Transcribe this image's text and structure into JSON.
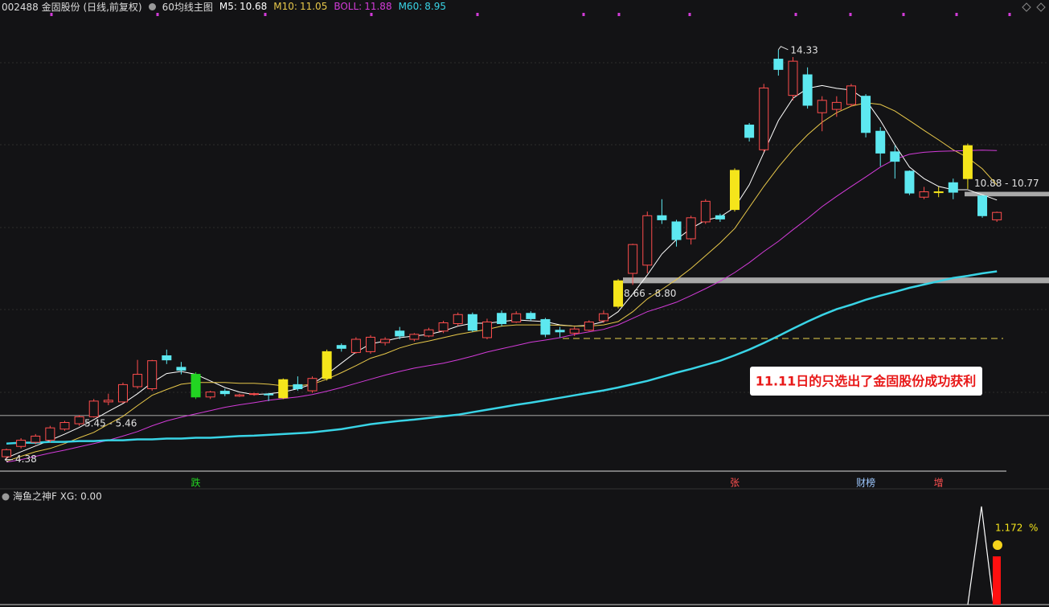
{
  "header": {
    "title": "002488 金固股份 (日线,前复权)",
    "template": "60均线主图",
    "indicators": [
      {
        "label": "M5:",
        "value": 10.68,
        "color": "#ffffff"
      },
      {
        "label": "M10:",
        "value": 11.05,
        "color": "#e8c84a"
      },
      {
        "label": "BOLL:",
        "value": 11.88,
        "color": "#d23bd8"
      },
      {
        "label": "M60:",
        "value": 8.95,
        "color": "#39d4e6"
      }
    ]
  },
  "chart_data": {
    "type": "candlestick",
    "ylim": [
      4.1,
      14.95
    ],
    "open": [
      4.45,
      4.7,
      4.8,
      4.85,
      5.12,
      5.25,
      5.42,
      5.78,
      5.78,
      6.15,
      6.1,
      6.9,
      6.62,
      6.45,
      5.9,
      6.04,
      5.92,
      5.96,
      5.97,
      5.88,
      6.2,
      6.05,
      6.35,
      7.15,
      6.98,
      7.0,
      7.22,
      7.5,
      7.3,
      7.38,
      7.5,
      7.68,
      7.9,
      7.34,
      7.93,
      7.72,
      7.93,
      7.78,
      7.52,
      7.45,
      7.52,
      7.75,
      8.1,
      8.9,
      9.1,
      10.3,
      10.15,
      9.74,
      10.15,
      10.3,
      10.45,
      12.5,
      11.9,
      14.1,
      13.22,
      13.72,
      12.8,
      12.88,
      13.0,
      13.2,
      12.35,
      11.85,
      11.38,
      10.75,
      10.86,
      11.1,
      12.0,
      10.78,
      10.2
    ],
    "close": [
      4.62,
      4.85,
      4.95,
      5.15,
      5.28,
      5.42,
      5.8,
      5.82,
      6.2,
      6.45,
      6.78,
      6.8,
      6.55,
      5.9,
      6.02,
      5.98,
      5.95,
      5.98,
      5.95,
      6.32,
      6.1,
      6.35,
      7.0,
      7.08,
      7.3,
      7.35,
      7.3,
      7.38,
      7.42,
      7.53,
      7.7,
      7.9,
      7.52,
      7.72,
      7.68,
      7.92,
      7.8,
      7.42,
      7.48,
      7.55,
      7.72,
      7.92,
      8.72,
      9.6,
      10.3,
      10.2,
      9.72,
      10.25,
      10.65,
      10.22,
      11.4,
      12.2,
      13.4,
      13.85,
      14.05,
      12.98,
      13.1,
      13.05,
      13.45,
      12.32,
      11.82,
      11.62,
      10.85,
      10.88,
      10.88,
      10.87,
      11.2,
      10.3,
      10.38
    ],
    "high": [
      4.65,
      4.9,
      5.0,
      5.2,
      5.32,
      5.46,
      5.85,
      5.98,
      6.25,
      6.8,
      6.8,
      7.05,
      6.75,
      6.5,
      6.05,
      6.1,
      5.98,
      6.0,
      6.0,
      6.35,
      6.4,
      6.4,
      7.05,
      7.2,
      7.35,
      7.4,
      7.35,
      7.6,
      7.45,
      7.58,
      7.75,
      7.95,
      7.95,
      7.8,
      8.0,
      7.98,
      7.98,
      7.82,
      7.6,
      7.6,
      7.76,
      8.0,
      8.76,
      9.62,
      10.4,
      10.7,
      10.2,
      10.3,
      10.7,
      10.35,
      11.45,
      12.55,
      13.5,
      14.33,
      14.15,
      13.9,
      13.2,
      13.2,
      13.5,
      13.25,
      12.45,
      12.0,
      11.4,
      11.0,
      11.0,
      11.2,
      12.05,
      10.8,
      10.4
    ],
    "low": [
      4.38,
      4.65,
      4.75,
      4.8,
      5.08,
      5.2,
      5.4,
      5.7,
      5.75,
      6.1,
      6.05,
      6.7,
      6.45,
      5.85,
      5.85,
      5.92,
      5.9,
      5.93,
      5.8,
      5.85,
      6.05,
      6.0,
      6.3,
      7.0,
      6.95,
      6.95,
      7.15,
      7.3,
      7.25,
      7.35,
      7.45,
      7.62,
      7.48,
      7.3,
      7.62,
      7.7,
      7.75,
      7.35,
      7.35,
      7.38,
      7.5,
      7.7,
      8.05,
      8.62,
      8.9,
      10.1,
      9.55,
      9.6,
      10.1,
      10.15,
      10.4,
      12.1,
      11.85,
      13.7,
      13.1,
      12.9,
      12.35,
      12.7,
      12.95,
      12.2,
      11.5,
      11.2,
      10.8,
      10.7,
      10.75,
      10.7,
      10.95,
      10.25,
      10.15
    ],
    "colors": [
      "#ff4d4d",
      "#ff4d4d",
      "#ff4d4d",
      "#ff4d4d",
      "#ff4d4d",
      "#ff4d4d",
      "#ff4d4d",
      "#ff4d4d",
      "#ff4d4d",
      "#ff4d4d",
      "#ff4d4d",
      "#5de8f0",
      "#5de8f0",
      "#22d422",
      "#ff4d4d",
      "#5de8f0",
      "#ff4d4d",
      "#ff4d4d",
      "#5de8f0",
      "#f5e51b",
      "#5de8f0",
      "#ff4d4d",
      "#f5e51b",
      "#5de8f0",
      "#ff4d4d",
      "#ff4d4d",
      "#ff4d4d",
      "#5de8f0",
      "#ff4d4d",
      "#ff4d4d",
      "#ff4d4d",
      "#ff4d4d",
      "#5de8f0",
      "#ff4d4d",
      "#5de8f0",
      "#ff4d4d",
      "#5de8f0",
      "#5de8f0",
      "#5de8f0",
      "#ff4d4d",
      "#ff4d4d",
      "#ff4d4d",
      "#f5e51b",
      "#ff4d4d",
      "#ff4d4d",
      "#5de8f0",
      "#5de8f0",
      "#ff4d4d",
      "#ff4d4d",
      "#5de8f0",
      "#f5e51b",
      "#5de8f0",
      "#ff4d4d",
      "#5de8f0",
      "#ff4d4d",
      "#5de8f0",
      "#ff4d4d",
      "#ff4d4d",
      "#ff4d4d",
      "#5de8f0",
      "#5de8f0",
      "#5de8f0",
      "#5de8f0",
      "#ff4d4d",
      "#f5e51b",
      "#5de8f0",
      "#f5e51b",
      "#5de8f0",
      "#ff4d4d"
    ],
    "series": [
      {
        "color": "#ffffff",
        "width": 1,
        "values": [
          4.42,
          4.57,
          4.71,
          4.85,
          5.0,
          5.16,
          5.35,
          5.55,
          5.74,
          5.98,
          6.25,
          6.47,
          6.52,
          6.45,
          6.29,
          6.13,
          6.02,
          5.96,
          5.98,
          6.02,
          6.1,
          6.21,
          6.45,
          6.72,
          6.99,
          7.19,
          7.26,
          7.34,
          7.38,
          7.42,
          7.5,
          7.62,
          7.69,
          7.69,
          7.73,
          7.77,
          7.75,
          7.73,
          7.65,
          7.62,
          7.64,
          7.73,
          7.97,
          8.4,
          8.86,
          9.37,
          9.72,
          9.99,
          10.19,
          10.27,
          10.5,
          11.05,
          11.83,
          12.61,
          13.15,
          13.39,
          13.46,
          13.39,
          13.35,
          13.11,
          12.61,
          12.02,
          11.48,
          11.2,
          11.01,
          10.93,
          10.93,
          10.81,
          10.68
        ]
      },
      {
        "color": "#e8c84a",
        "width": 1,
        "values": [
          4.34,
          4.46,
          4.57,
          4.65,
          4.77,
          4.91,
          5.04,
          5.24,
          5.43,
          5.69,
          5.94,
          6.08,
          6.21,
          6.25,
          6.25,
          6.25,
          6.23,
          6.23,
          6.21,
          6.17,
          6.17,
          6.21,
          6.33,
          6.49,
          6.66,
          6.84,
          6.95,
          7.09,
          7.19,
          7.26,
          7.34,
          7.42,
          7.48,
          7.54,
          7.62,
          7.65,
          7.65,
          7.65,
          7.64,
          7.62,
          7.62,
          7.65,
          7.73,
          7.97,
          8.28,
          8.51,
          8.75,
          9.02,
          9.33,
          9.64,
          9.99,
          10.5,
          11.01,
          11.48,
          11.9,
          12.26,
          12.57,
          12.8,
          12.96,
          13.04,
          13.0,
          12.84,
          12.61,
          12.37,
          12.14,
          11.9,
          11.71,
          11.44,
          11.05
        ]
      },
      {
        "color": "#d23bd8",
        "width": 1,
        "values": [
          4.32,
          4.38,
          4.46,
          4.54,
          4.61,
          4.69,
          4.77,
          4.85,
          4.95,
          5.06,
          5.2,
          5.32,
          5.41,
          5.49,
          5.57,
          5.65,
          5.71,
          5.76,
          5.82,
          5.86,
          5.9,
          5.96,
          6.04,
          6.13,
          6.23,
          6.33,
          6.43,
          6.52,
          6.6,
          6.66,
          6.72,
          6.8,
          6.89,
          6.99,
          7.07,
          7.15,
          7.23,
          7.28,
          7.34,
          7.42,
          7.48,
          7.54,
          7.65,
          7.81,
          7.97,
          8.08,
          8.2,
          8.36,
          8.53,
          8.71,
          8.92,
          9.16,
          9.43,
          9.68,
          9.96,
          10.23,
          10.52,
          10.77,
          11.01,
          11.24,
          11.48,
          11.67,
          11.79,
          11.84,
          11.86,
          11.87,
          11.88,
          11.89,
          11.88
        ]
      },
      {
        "color": "#39d4e6",
        "width": 2.5,
        "values": [
          4.77,
          4.79,
          4.79,
          4.81,
          4.81,
          4.83,
          4.83,
          4.85,
          4.85,
          4.87,
          4.87,
          4.89,
          4.89,
          4.91,
          4.91,
          4.93,
          4.95,
          4.96,
          4.98,
          5.0,
          5.02,
          5.04,
          5.08,
          5.12,
          5.18,
          5.24,
          5.28,
          5.32,
          5.35,
          5.39,
          5.43,
          5.47,
          5.53,
          5.59,
          5.65,
          5.71,
          5.76,
          5.82,
          5.88,
          5.94,
          6.0,
          6.06,
          6.13,
          6.21,
          6.29,
          6.39,
          6.49,
          6.58,
          6.68,
          6.78,
          6.91,
          7.05,
          7.21,
          7.38,
          7.56,
          7.73,
          7.89,
          8.03,
          8.14,
          8.26,
          8.36,
          8.45,
          8.55,
          8.63,
          8.71,
          8.79,
          8.84,
          8.9,
          8.95
        ]
      }
    ],
    "bands": [
      {
        "high": 10.88,
        "low": 10.77,
        "label": "10.88 - 10.77"
      },
      {
        "low": 8.66,
        "high": 8.8,
        "label": "8.66 - 8.80"
      },
      {
        "low": 5.45,
        "high": 5.46,
        "label": "5.45 - 5.46"
      }
    ],
    "reference_line": {
      "value": 7.32,
      "color": "#e8d44d"
    },
    "events": [
      {
        "index": 13,
        "label": "跌",
        "color": "#22d422"
      },
      {
        "index": 50,
        "label": "张",
        "color": "#ff5050"
      },
      {
        "index": 59,
        "label": "财榜",
        "color": "#9ec8ff"
      },
      {
        "index": 64,
        "label": "增",
        "color": "#ff5050"
      }
    ],
    "annotation": "11.11日的只选出了金固股份成功获利"
  },
  "sub_panel": {
    "title": "海鱼之神F  XG: 0.00",
    "value": 1.172,
    "unit": "%"
  }
}
